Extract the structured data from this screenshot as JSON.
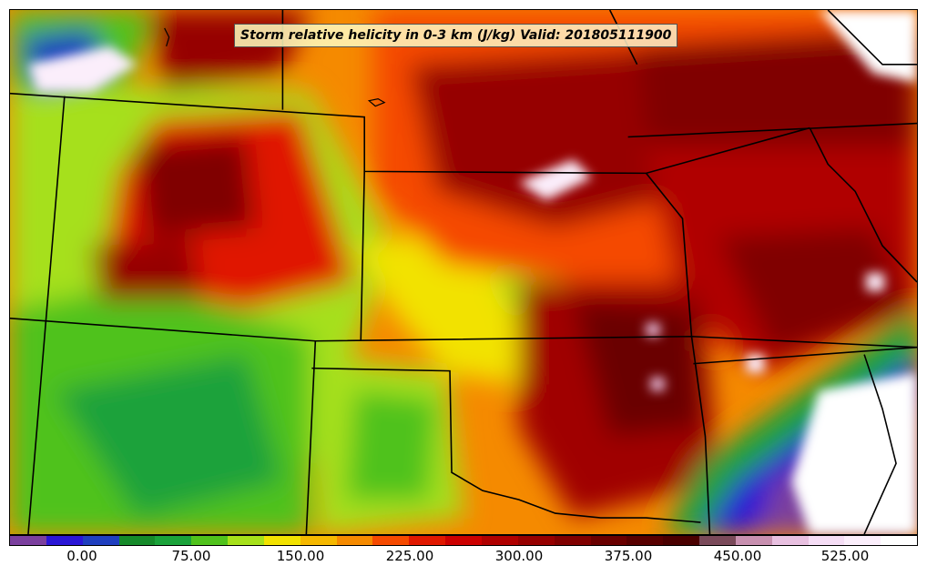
{
  "title": "Storm relative helicity in 0-3 km (J/kg) Valid: 201805111900",
  "colorbar": {
    "colors": [
      "#7b3f9e",
      "#2a16d6",
      "#1f3fbf",
      "#158a2a",
      "#1aa23a",
      "#50c21c",
      "#a6e01a",
      "#f2e200",
      "#f5b800",
      "#f58a00",
      "#f54a00",
      "#e01800",
      "#cc0000",
      "#b00000",
      "#960000",
      "#800000",
      "#6a0000",
      "#580000",
      "#4a0000",
      "#7a4a5a",
      "#c890b0",
      "#e8c0e0",
      "#f5ddf5",
      "#fbeefb",
      "#ffffff"
    ],
    "tick_labels": [
      "0.00",
      "75.00",
      "150.00",
      "225.00",
      "300.00",
      "375.00",
      "450.00",
      "525.00"
    ]
  },
  "legend_icons": [
    "coastline-lines",
    "state-border-lines"
  ]
}
